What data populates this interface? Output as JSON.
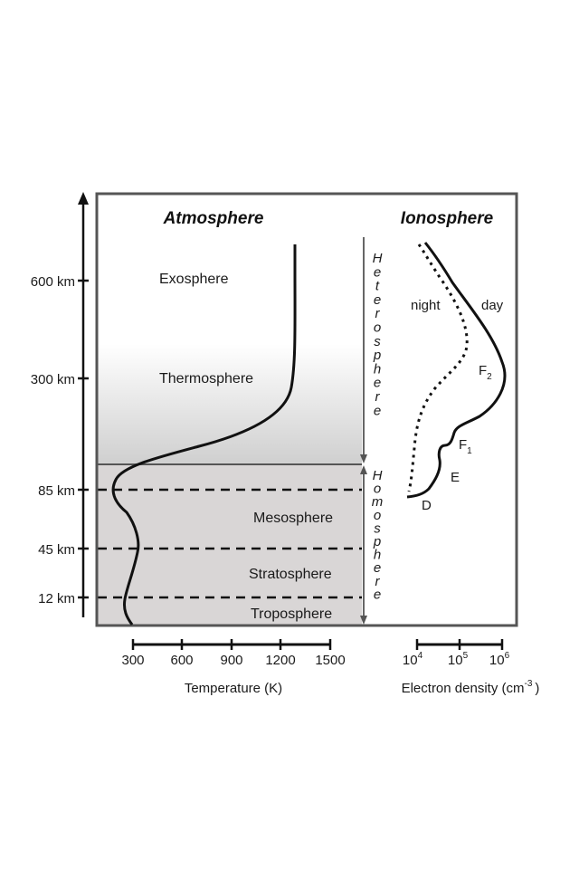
{
  "diagram": {
    "headings": {
      "atmosphere": "Atmosphere",
      "ionosphere": "Ionosphere"
    },
    "altitude_ticks": [
      "600 km",
      "300 km",
      "85 km",
      "45 km",
      "12 km"
    ],
    "layers": [
      "Exosphere",
      "Thermosphere",
      "Mesosphere",
      "Stratosphere",
      "Troposphere"
    ],
    "regions": {
      "upper": "Heterosphere",
      "lower": "Homosphere"
    },
    "ionosphere_curves": {
      "night": "night",
      "day": "day"
    },
    "ionosphere_layers": {
      "F2": "F",
      "F2_sub": "2",
      "F1": "F",
      "F1_sub": "1",
      "E": "E",
      "D": "D"
    },
    "temperature_axis": {
      "label": "Temperature (K)",
      "ticks": [
        "300",
        "600",
        "900",
        "1200",
        "1500"
      ]
    },
    "density_axis": {
      "label": "Electron density (cm",
      "label_sup": "-3",
      "label_end": ")",
      "ticks": [
        {
          "base": "10",
          "exp": "4"
        },
        {
          "base": "10",
          "exp": "5"
        },
        {
          "base": "10",
          "exp": "6"
        }
      ]
    }
  }
}
